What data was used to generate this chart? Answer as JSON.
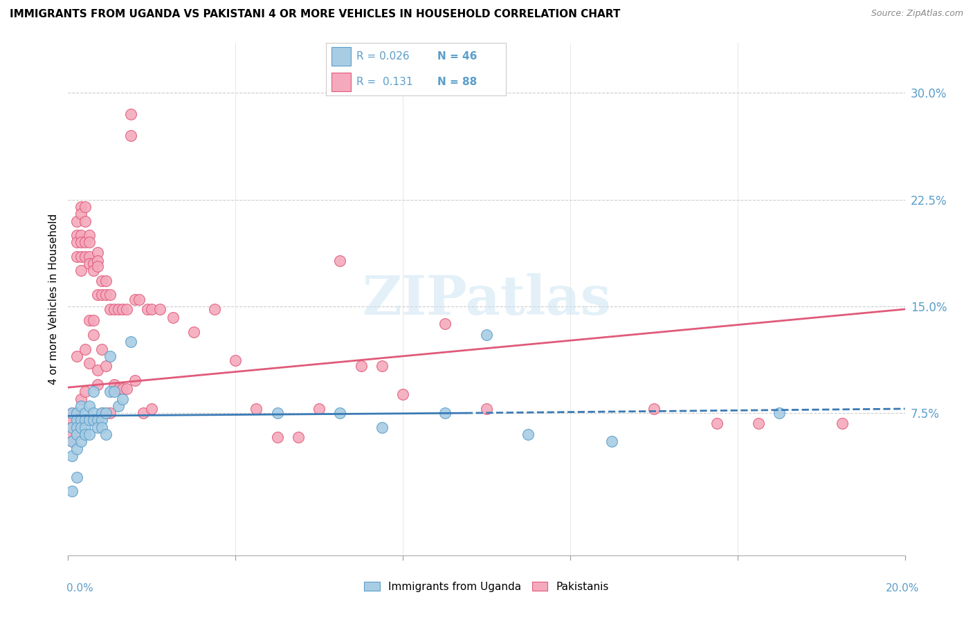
{
  "title": "IMMIGRANTS FROM UGANDA VS PAKISTANI 4 OR MORE VEHICLES IN HOUSEHOLD CORRELATION CHART",
  "source": "Source: ZipAtlas.com",
  "ylabel": "4 or more Vehicles in Household",
  "xmin": 0.0,
  "xmax": 0.2,
  "ymin": -0.025,
  "ymax": 0.335,
  "right_yticks": [
    0.075,
    0.15,
    0.225,
    0.3
  ],
  "right_yticklabels": [
    "7.5%",
    "15.0%",
    "22.5%",
    "30.0%"
  ],
  "blue_color": "#a8cce4",
  "blue_edge": "#5b9ec9",
  "pink_color": "#f4aabc",
  "pink_edge": "#e05a7a",
  "trend_blue_color": "#3a7ab5",
  "trend_pink_color": "#e05a7a",
  "legend_R_blue": "0.026",
  "legend_N_blue": "46",
  "legend_R_pink": "0.131",
  "legend_N_pink": "88",
  "legend_label_blue": "Immigrants from Uganda",
  "legend_label_pink": "Pakistanis",
  "watermark": "ZIPatlas",
  "blue_scatter_x": [
    0.001,
    0.001,
    0.001,
    0.001,
    0.001,
    0.002,
    0.002,
    0.002,
    0.002,
    0.002,
    0.002,
    0.003,
    0.003,
    0.003,
    0.003,
    0.004,
    0.004,
    0.004,
    0.004,
    0.005,
    0.005,
    0.005,
    0.006,
    0.006,
    0.006,
    0.007,
    0.007,
    0.008,
    0.008,
    0.008,
    0.009,
    0.009,
    0.01,
    0.01,
    0.011,
    0.012,
    0.013,
    0.015,
    0.05,
    0.065,
    0.075,
    0.09,
    0.1,
    0.11,
    0.13,
    0.17
  ],
  "blue_scatter_y": [
    0.075,
    0.065,
    0.055,
    0.045,
    0.02,
    0.075,
    0.07,
    0.065,
    0.06,
    0.05,
    0.03,
    0.08,
    0.07,
    0.065,
    0.055,
    0.075,
    0.07,
    0.065,
    0.06,
    0.08,
    0.07,
    0.06,
    0.09,
    0.075,
    0.07,
    0.07,
    0.065,
    0.075,
    0.07,
    0.065,
    0.075,
    0.06,
    0.115,
    0.09,
    0.09,
    0.08,
    0.085,
    0.125,
    0.075,
    0.075,
    0.065,
    0.075,
    0.13,
    0.06,
    0.055,
    0.075
  ],
  "pink_scatter_x": [
    0.001,
    0.001,
    0.001,
    0.001,
    0.001,
    0.002,
    0.002,
    0.002,
    0.002,
    0.002,
    0.002,
    0.002,
    0.003,
    0.003,
    0.003,
    0.003,
    0.003,
    0.003,
    0.003,
    0.004,
    0.004,
    0.004,
    0.004,
    0.004,
    0.004,
    0.005,
    0.005,
    0.005,
    0.005,
    0.005,
    0.005,
    0.006,
    0.006,
    0.006,
    0.006,
    0.007,
    0.007,
    0.007,
    0.007,
    0.007,
    0.007,
    0.008,
    0.008,
    0.008,
    0.008,
    0.009,
    0.009,
    0.009,
    0.009,
    0.01,
    0.01,
    0.01,
    0.011,
    0.011,
    0.012,
    0.012,
    0.013,
    0.013,
    0.014,
    0.014,
    0.015,
    0.015,
    0.016,
    0.016,
    0.017,
    0.018,
    0.019,
    0.02,
    0.02,
    0.022,
    0.025,
    0.03,
    0.035,
    0.04,
    0.045,
    0.05,
    0.055,
    0.06,
    0.065,
    0.07,
    0.075,
    0.08,
    0.09,
    0.1,
    0.14,
    0.155,
    0.165,
    0.185
  ],
  "pink_scatter_y": [
    0.075,
    0.07,
    0.065,
    0.06,
    0.055,
    0.21,
    0.2,
    0.195,
    0.185,
    0.115,
    0.075,
    0.06,
    0.22,
    0.215,
    0.2,
    0.195,
    0.185,
    0.175,
    0.085,
    0.22,
    0.21,
    0.195,
    0.185,
    0.12,
    0.09,
    0.2,
    0.195,
    0.185,
    0.18,
    0.14,
    0.11,
    0.18,
    0.175,
    0.14,
    0.13,
    0.188,
    0.182,
    0.178,
    0.158,
    0.105,
    0.095,
    0.168,
    0.158,
    0.12,
    0.075,
    0.168,
    0.158,
    0.108,
    0.075,
    0.158,
    0.148,
    0.075,
    0.148,
    0.095,
    0.148,
    0.092,
    0.148,
    0.092,
    0.148,
    0.092,
    0.285,
    0.27,
    0.098,
    0.155,
    0.155,
    0.075,
    0.148,
    0.148,
    0.078,
    0.148,
    0.142,
    0.132,
    0.148,
    0.112,
    0.078,
    0.058,
    0.058,
    0.078,
    0.182,
    0.108,
    0.108,
    0.088,
    0.138,
    0.078,
    0.078,
    0.068,
    0.068,
    0.068
  ]
}
